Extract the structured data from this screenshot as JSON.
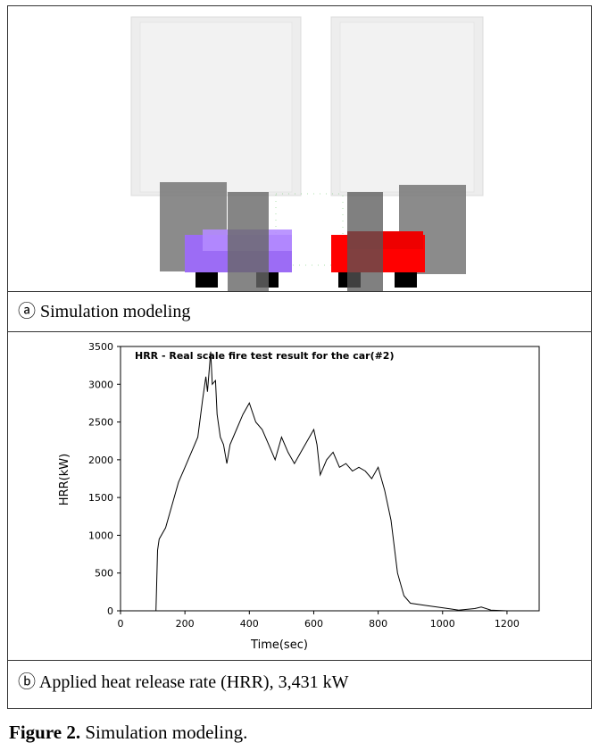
{
  "panels": [
    {
      "caption": "ⓐ Simulation modeling"
    },
    {
      "caption": "ⓑ Applied heat release rate (HRR), 3,431 kW"
    }
  ],
  "figure_label": "Figure 2.",
  "figure_text": "Simulation modeling.",
  "chart_data": {
    "type": "line",
    "title": "HRR - Real scale fire test result for the car(#2)",
    "x_label": "Time(sec)",
    "y_label": "HRR(kW)",
    "color": "#000000",
    "x": [
      40,
      110,
      115,
      120,
      140,
      160,
      180,
      200,
      220,
      240,
      255,
      265,
      270,
      280,
      285,
      295,
      300,
      310,
      320,
      330,
      340,
      360,
      380,
      400,
      420,
      440,
      460,
      480,
      500,
      520,
      540,
      560,
      580,
      600,
      610,
      620,
      640,
      660,
      680,
      700,
      720,
      740,
      760,
      780,
      800,
      820,
      840,
      860,
      880,
      900,
      950,
      1000,
      1050,
      1100,
      1120,
      1150,
      1200
    ],
    "values": [
      0,
      0,
      800,
      950,
      1100,
      1400,
      1700,
      1900,
      2100,
      2300,
      2800,
      3100,
      2900,
      3431,
      3000,
      3050,
      2600,
      2300,
      2200,
      1950,
      2200,
      2400,
      2600,
      2750,
      2500,
      2400,
      2200,
      2000,
      2300,
      2100,
      1950,
      2100,
      2250,
      2400,
      2200,
      1800,
      2000,
      2100,
      1900,
      1950,
      1850,
      1900,
      1850,
      1750,
      1900,
      1600,
      1200,
      500,
      200,
      100,
      70,
      40,
      10,
      30,
      50,
      10,
      0
    ],
    "xlim": [
      0,
      1300
    ],
    "ylim": [
      0,
      3500
    ],
    "xticks": [
      0,
      200,
      400,
      600,
      800,
      1000,
      1200
    ],
    "yticks": [
      0,
      500,
      1000,
      1500,
      2000,
      2500,
      3000,
      3500
    ]
  }
}
